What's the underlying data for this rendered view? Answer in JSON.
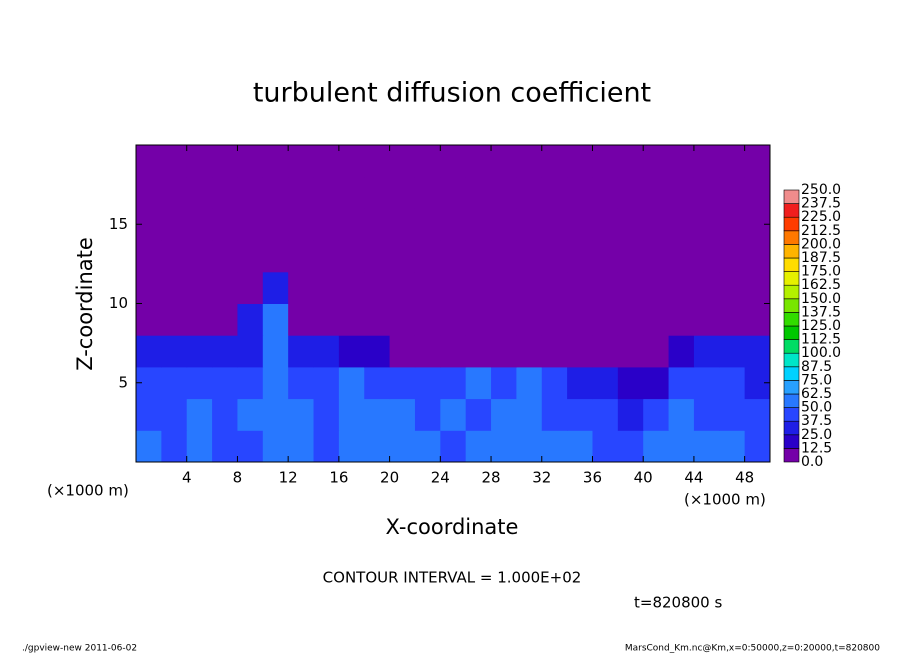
{
  "chart_data": {
    "type": "heatmap",
    "title": "turbulent diffusion coefficient",
    "xlabel": "X-coordinate",
    "ylabel": "Z-coordinate",
    "x_unit_left": "(×1000 m)",
    "x_unit_right": "(×1000 m)",
    "contour_note": "CONTOUR INTERVAL = 1.000E+02",
    "time_note": "t=820800 s",
    "footer_left": "./gpview-new   2011-06-02",
    "footer_right": "MarsCond_Km.nc@Km,x=0:50000,z=0:20000,t=820800",
    "xlim": [
      0,
      50
    ],
    "ylim": [
      0,
      20
    ],
    "xticks": [
      4,
      8,
      12,
      16,
      20,
      24,
      28,
      32,
      36,
      40,
      44,
      48
    ],
    "yticks": [
      5,
      10,
      15
    ],
    "xbins": [
      0,
      2,
      4,
      6,
      8,
      10,
      12,
      14,
      16,
      18,
      20,
      22,
      24,
      26,
      28,
      30,
      32,
      34,
      36,
      38,
      40,
      42,
      44,
      46,
      48,
      50
    ],
    "ybins": [
      0,
      2,
      4,
      6,
      8,
      10,
      12,
      14,
      16,
      18,
      20
    ],
    "z": [
      [
        50,
        45,
        55,
        40,
        45,
        60,
        55,
        45,
        50,
        62,
        55,
        50,
        45,
        55,
        50,
        60,
        55,
        50,
        40,
        45,
        55,
        62,
        50,
        55,
        45
      ],
      [
        45,
        40,
        50,
        45,
        50,
        62,
        50,
        45,
        55,
        55,
        50,
        45,
        50,
        45,
        55,
        50,
        45,
        45,
        40,
        35,
        40,
        50,
        45,
        45,
        40
      ],
      [
        40,
        40,
        45,
        40,
        45,
        62,
        45,
        40,
        50,
        45,
        45,
        40,
        45,
        50,
        45,
        55,
        45,
        30,
        25,
        20,
        20,
        40,
        40,
        40,
        35
      ],
      [
        35,
        35,
        30,
        25,
        30,
        60,
        35,
        35,
        20,
        15,
        10,
        10,
        10,
        10,
        10,
        10,
        10,
        5,
        5,
        5,
        5,
        15,
        30,
        35,
        35
      ],
      [
        5,
        5,
        5,
        5,
        30,
        55,
        10,
        5,
        5,
        5,
        5,
        5,
        5,
        5,
        5,
        5,
        5,
        5,
        5,
        5,
        5,
        5,
        5,
        5,
        5
      ],
      [
        3,
        3,
        3,
        3,
        3,
        30,
        3,
        3,
        3,
        3,
        3,
        3,
        3,
        3,
        3,
        3,
        3,
        3,
        3,
        3,
        3,
        3,
        3,
        3,
        3
      ],
      [
        3,
        3,
        3,
        3,
        3,
        3,
        3,
        3,
        3,
        3,
        3,
        3,
        3,
        3,
        3,
        3,
        3,
        3,
        3,
        3,
        3,
        3,
        3,
        3,
        3
      ],
      [
        3,
        3,
        3,
        3,
        3,
        3,
        3,
        3,
        3,
        3,
        3,
        3,
        3,
        3,
        3,
        3,
        3,
        3,
        3,
        3,
        3,
        3,
        3,
        3,
        3
      ],
      [
        3,
        3,
        3,
        3,
        3,
        3,
        3,
        3,
        3,
        3,
        3,
        3,
        3,
        3,
        3,
        3,
        3,
        3,
        3,
        3,
        3,
        3,
        3,
        3,
        3
      ],
      [
        3,
        3,
        3,
        3,
        3,
        3,
        3,
        3,
        3,
        3,
        3,
        3,
        3,
        3,
        3,
        3,
        3,
        3,
        3,
        3,
        3,
        3,
        3,
        3,
        3
      ]
    ],
    "levels": [
      {
        "value": 0,
        "label": "0.0"
      },
      {
        "value": 12.5,
        "label": "12.5"
      },
      {
        "value": 25,
        "label": "25.0"
      },
      {
        "value": 37.5,
        "label": "37.5"
      },
      {
        "value": 50,
        "label": "50.0"
      },
      {
        "value": 62.5,
        "label": "62.5"
      },
      {
        "value": 75,
        "label": "75.0"
      },
      {
        "value": 87.5,
        "label": "87.5"
      },
      {
        "value": 100,
        "label": "100.0"
      },
      {
        "value": 112.5,
        "label": "112.5"
      },
      {
        "value": 125,
        "label": "125.0"
      },
      {
        "value": 137.5,
        "label": "137.5"
      },
      {
        "value": 150,
        "label": "150.0"
      },
      {
        "value": 162.5,
        "label": "162.5"
      },
      {
        "value": 175,
        "label": "175.0"
      },
      {
        "value": 187.5,
        "label": "187.5"
      },
      {
        "value": 200,
        "label": "200.0"
      },
      {
        "value": 212.5,
        "label": "212.5"
      },
      {
        "value": 225,
        "label": "225.0"
      },
      {
        "value": 237.5,
        "label": "237.5"
      },
      {
        "value": 250,
        "label": "250.0"
      }
    ],
    "colors": [
      "#7400a8",
      "#2a00c8",
      "#1e1ee6",
      "#2846ff",
      "#2878ff",
      "#28a0ff",
      "#00d2ff",
      "#00e6c8",
      "#00dc64",
      "#00c800",
      "#32dc00",
      "#78e600",
      "#b4f000",
      "#e6f000",
      "#ffdc00",
      "#ffb400",
      "#ff7800",
      "#ff3c00",
      "#f01e1e",
      "#f08c8c"
    ]
  }
}
